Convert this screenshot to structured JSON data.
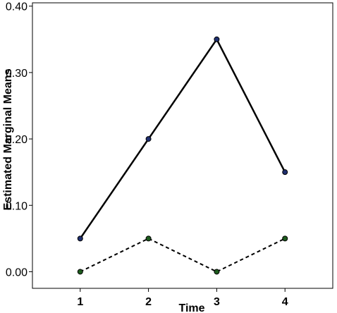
{
  "chart_data": {
    "type": "line",
    "title": "",
    "xlabel": "Time",
    "ylabel": "Estimated Marginal Means",
    "x": [
      "1",
      "2",
      "3",
      "4"
    ],
    "xlim": [
      0.3,
      4.7
    ],
    "ylim": [
      -0.025,
      0.405
    ],
    "yticks": [
      "0.00",
      "0.10",
      "0.20",
      "0.30",
      "0.40"
    ],
    "ytick_values": [
      0.0,
      0.1,
      0.2,
      0.3,
      0.4
    ],
    "grid": false,
    "legend": "none",
    "series": [
      {
        "values": [
          0.05,
          0.2,
          0.35,
          0.15
        ],
        "line_style": "solid",
        "line_color": "#000000",
        "marker_color": "#1f2f6e"
      },
      {
        "values": [
          0.0,
          0.05,
          0.0,
          0.05
        ],
        "line_style": "dashed",
        "line_color": "#000000",
        "marker_color": "#1e5c1e"
      }
    ]
  }
}
